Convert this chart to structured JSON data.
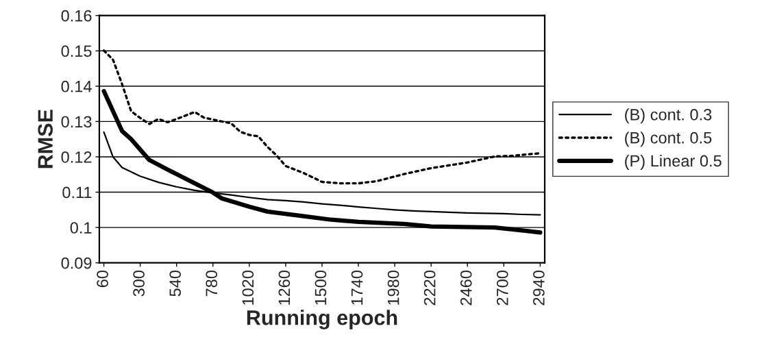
{
  "chart_data": {
    "type": "line",
    "xlabel": "Running epoch",
    "ylabel": "RMSE",
    "xlim": [
      30,
      2970
    ],
    "xticks": [
      60,
      300,
      540,
      780,
      1020,
      1260,
      1500,
      1740,
      1980,
      2220,
      2460,
      2700,
      2940
    ],
    "ylim": [
      0.09,
      0.16
    ],
    "yticks": [
      {
        "value": 0.09,
        "label": "0.09"
      },
      {
        "value": 0.1,
        "label": "0.1"
      },
      {
        "value": 0.11,
        "label": "0.11"
      },
      {
        "value": 0.12,
        "label": "0.12"
      },
      {
        "value": 0.13,
        "label": "0.13"
      },
      {
        "value": 0.14,
        "label": "0.14"
      },
      {
        "value": 0.15,
        "label": "0.15"
      },
      {
        "value": 0.16,
        "label": "0.16"
      }
    ],
    "grid": "y",
    "legend": "right",
    "marker": "none",
    "series": [
      {
        "name": "(B) cont. 0.3",
        "color": "#000000",
        "line_style": "solid",
        "x": [
          60,
          120,
          180,
          300,
          420,
          540,
          660,
          780,
          900,
          1020,
          1140,
          1260,
          1380,
          1500,
          1620,
          1740,
          1860,
          1980,
          2100,
          2220,
          2340,
          2460,
          2580,
          2700,
          2820,
          2940
        ],
        "values": [
          0.127,
          0.12,
          0.117,
          0.1145,
          0.1128,
          0.1115,
          0.1105,
          0.1098,
          0.1092,
          0.1085,
          0.1079,
          0.1076,
          0.1072,
          0.1067,
          0.1063,
          0.1058,
          0.1054,
          0.105,
          0.1047,
          0.1045,
          0.1043,
          0.1041,
          0.104,
          0.1039,
          0.1037,
          0.1036
        ]
      },
      {
        "name": "(B) cont. 0.5",
        "color": "#000000",
        "line_style": "dotted",
        "x": [
          60,
          120,
          180,
          240,
          300,
          360,
          420,
          480,
          540,
          660,
          720,
          840,
          900,
          960,
          1020,
          1080,
          1140,
          1200,
          1260,
          1380,
          1500,
          1620,
          1740,
          1860,
          2040,
          2220,
          2460,
          2640,
          2760,
          2880,
          2940
        ],
        "values": [
          0.1501,
          0.1475,
          0.1406,
          0.1329,
          0.131,
          0.1293,
          0.1307,
          0.1298,
          0.1307,
          0.1327,
          0.1311,
          0.13,
          0.1295,
          0.1271,
          0.1262,
          0.1258,
          0.1228,
          0.1204,
          0.1174,
          0.1154,
          0.1129,
          0.1125,
          0.1125,
          0.1131,
          0.1151,
          0.1168,
          0.1184,
          0.1201,
          0.1203,
          0.1208,
          0.121
        ]
      },
      {
        "name": "(P) Linear 0.5",
        "color": "#000000",
        "line_style": "solid",
        "x": [
          60,
          180,
          240,
          360,
          480,
          660,
          780,
          840,
          1020,
          1140,
          1380,
          1560,
          1740,
          2040,
          2220,
          2640,
          2940
        ],
        "values": [
          0.1386,
          0.1273,
          0.125,
          0.1191,
          0.1164,
          0.1125,
          0.1099,
          0.1082,
          0.1059,
          0.1045,
          0.1032,
          0.1022,
          0.1016,
          0.101,
          0.1003,
          0.1,
          0.0986
        ]
      }
    ]
  }
}
